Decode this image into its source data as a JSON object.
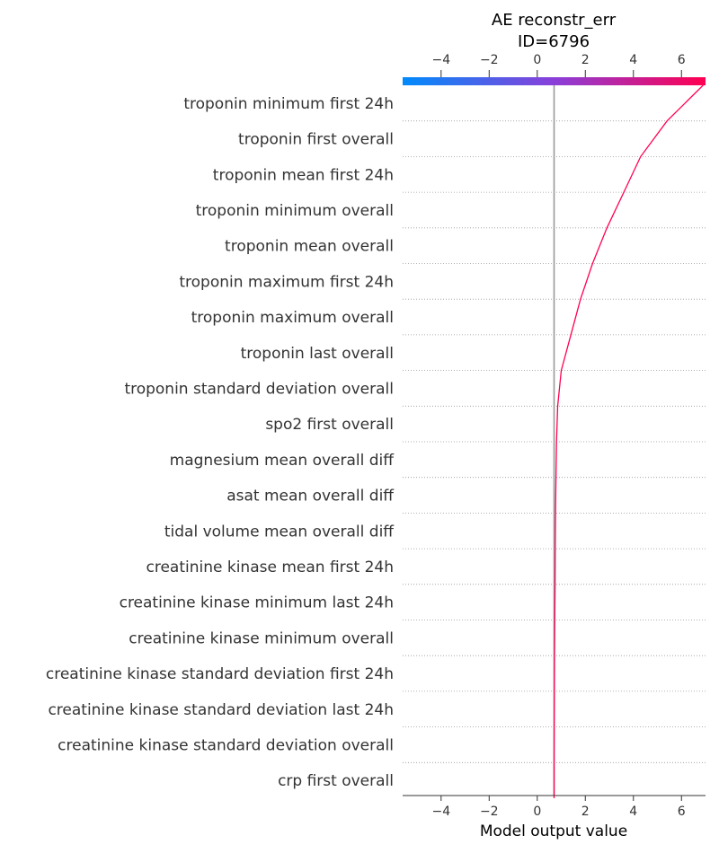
{
  "chart_data": {
    "type": "line",
    "title": "AE reconstr_err",
    "subtitle": "ID=6796",
    "xlabel": "Model output value",
    "xlim": [
      -5.6,
      7.0
    ],
    "xticks": [
      -4,
      -2,
      0,
      2,
      4,
      6
    ],
    "xtick_labels": [
      "−4",
      "−2",
      "0",
      "2",
      "4",
      "6"
    ],
    "base_value": 0.7,
    "features": [
      "troponin  minimum  first 24h",
      "troponin  first  overall",
      "troponin  mean  first 24h",
      "troponin  minimum  overall",
      "troponin  mean  overall",
      "troponin  maximum  first 24h",
      "troponin  maximum  overall",
      "troponin  last  overall",
      "troponin  standard deviation  overall",
      "spo2  first  overall",
      "magnesium  mean  overall  diff",
      "asat  mean  overall  diff",
      "tidal volume  mean  overall  diff",
      "creatinine kinase  mean  first 24h",
      "creatinine kinase  minimum  last 24h",
      "creatinine kinase  minimum  overall",
      "creatinine kinase  standard deviation  first 24h",
      "creatinine kinase  standard deviation  last 24h",
      "creatinine kinase  standard deviation  overall",
      "crp  first  overall"
    ],
    "path_values": [
      6.9,
      5.4,
      4.3,
      3.6,
      2.9,
      2.3,
      1.8,
      1.4,
      1.0,
      0.85,
      0.8,
      0.78,
      0.76,
      0.75,
      0.74,
      0.73,
      0.72,
      0.71,
      0.705,
      0.7,
      0.7
    ],
    "colors": {
      "line": "#ff0051",
      "base_line": "#999999",
      "grid": "#999999",
      "colorbar_low": "#008bfb",
      "colorbar_mid": "#8a3fd9",
      "colorbar_high": "#ff0051"
    }
  }
}
